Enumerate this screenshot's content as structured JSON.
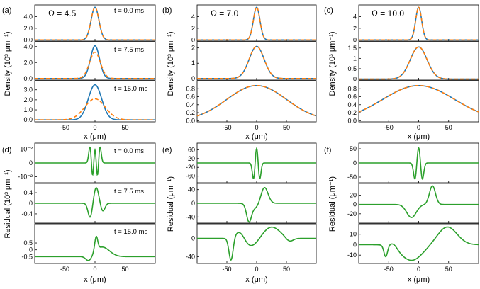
{
  "chart_data": {
    "type": "line",
    "panel_labels": [
      "(a)",
      "(b)",
      "(c)",
      "(d)",
      "(e)",
      "(f)"
    ],
    "omega_labels": [
      "Ω = 4.5",
      "Ω = 7.0",
      "Ω = 10.0"
    ],
    "time_labels": [
      "t = 0.0 ms",
      "t = 7.5 ms",
      "t = 15.0 ms"
    ],
    "xlabel": "x (μm)",
    "xlim": [
      -100,
      100
    ],
    "xticks": [
      -50,
      0,
      50
    ],
    "xtick_labels": [
      "-50",
      "0",
      "50"
    ],
    "ylabels": {
      "density_a": "Density (10³ μm⁻¹)",
      "density_bc": "Density (10³ μm⁻¹)",
      "residual_d": "Residual (10³ μm⁻¹)",
      "residual_ef": "Residual (μm⁻¹)"
    },
    "colors": {
      "solid": "#1f77b4",
      "dashed": "#ff7f0e",
      "residual": "#2ca02c"
    },
    "density": [
      {
        "omega": 4.5,
        "subplots": [
          {
            "ylim": [
              -0.2,
              6.0
            ],
            "yticks": [
              0,
              2,
              4
            ],
            "ytick_labels": [
              "0.0",
              "2.0",
              "4.0"
            ],
            "solid_peak": 5.6,
            "solid_width": 6.5,
            "dashed_peak": 5.6,
            "dashed_width": 6.5
          },
          {
            "ylim": [
              -0.2,
              4.6
            ],
            "yticks": [
              0,
              2,
              4
            ],
            "ytick_labels": [
              "0.0",
              "2.0",
              "4.0"
            ],
            "solid_peak": 4.1,
            "solid_width": 7.5,
            "dashed_peak": 3.3,
            "dashed_width": 9.0
          },
          {
            "ylim": [
              -0.2,
              3.9
            ],
            "yticks": [
              0,
              1,
              2,
              3
            ],
            "ytick_labels": [
              "0.0",
              "1.0",
              "2.0",
              "3.0"
            ],
            "solid_peak": 3.5,
            "solid_width": 11.0,
            "dashed_peak": 2.1,
            "dashed_width": 17.0
          }
        ]
      },
      {
        "omega": 7.0,
        "subplots": [
          {
            "ylim": [
              -0.2,
              6.0
            ],
            "yticks": [
              0,
              2,
              4
            ],
            "ytick_labels": [
              "0",
              "2",
              "4"
            ],
            "solid_peak": 5.6,
            "solid_width": 5.5,
            "dashed_peak": 5.6,
            "dashed_width": 5.5
          },
          {
            "ylim": [
              -0.1,
              2.4
            ],
            "yticks": [
              0,
              1,
              2
            ],
            "ytick_labels": [
              "0",
              "1",
              "2"
            ],
            "solid_peak": 2.1,
            "solid_width": 12.5,
            "dashed_peak": 2.1,
            "dashed_width": 12.5
          },
          {
            "ylim": [
              -0.03,
              1.0
            ],
            "yticks": [
              0,
              0.2,
              0.4,
              0.6,
              0.8
            ],
            "ytick_labels": [
              "0.0",
              "0.2",
              "0.4",
              "0.6",
              "0.8"
            ],
            "solid_peak": 0.88,
            "solid_width": 50,
            "dashed_peak": 0.88,
            "dashed_width": 50
          }
        ]
      },
      {
        "omega": 10.0,
        "subplots": [
          {
            "ylim": [
              -0.2,
              6.0
            ],
            "yticks": [
              0,
              2,
              4
            ],
            "ytick_labels": [
              "0",
              "2",
              "4"
            ],
            "solid_peak": 5.6,
            "solid_width": 5.0,
            "dashed_peak": 5.6,
            "dashed_width": 5.0
          },
          {
            "ylim": [
              -0.05,
              1.8
            ],
            "yticks": [
              0,
              0.5,
              1,
              1.5
            ],
            "ytick_labels": [
              "0",
              "0.5",
              "1",
              "1.5"
            ],
            "solid_peak": 1.55,
            "solid_width": 14.0,
            "dashed_peak": 1.55,
            "dashed_width": 14.0
          },
          {
            "ylim": [
              -0.03,
              1.0
            ],
            "yticks": [
              0,
              0.2,
              0.4,
              0.6,
              0.8
            ],
            "ytick_labels": [
              "0.0",
              "0.2",
              "0.4",
              "0.6",
              "0.8"
            ],
            "solid_peak": 0.88,
            "solid_width": 60,
            "dashed_peak": 0.88,
            "dashed_width": 60
          }
        ]
      }
    ],
    "residual": [
      {
        "subplots": [
          {
            "ylim": [
              -1.0,
              1.0
            ],
            "yticks": [
              -0.7,
              0,
              0.7
            ],
            "ytick_labels": [
              "-10⁻²",
              "0",
              "10⁻²"
            ],
            "baseline": 0,
            "components": [
              {
                "amp": 0.9,
                "center": -8,
                "width": 2.2
              },
              {
                "amp": -0.95,
                "center": -4,
                "width": 2.0
              },
              {
                "amp": 0.9,
                "center": 0,
                "width": 2.2
              },
              {
                "amp": -0.95,
                "center": 4,
                "width": 2.0
              },
              {
                "amp": 0.9,
                "center": 8,
                "width": 2.2
              }
            ]
          },
          {
            "ylim": [
              -0.75,
              0.75
            ],
            "yticks": [
              -0.4,
              0,
              0.4
            ],
            "ytick_labels": [
              "-0.4",
              "0",
              "0.4"
            ],
            "baseline": 0,
            "components": [
              {
                "amp": -0.55,
                "center": -8,
                "width": 3.5
              },
              {
                "amp": 0.6,
                "center": 2,
                "width": 4.0
              },
              {
                "amp": -0.3,
                "center": 13,
                "width": 3.5
              }
            ]
          },
          {
            "ylim": [
              -1.0,
              1.9
            ],
            "yticks": [
              -0.5,
              0,
              0.5
            ],
            "ytick_labels": [
              "-0.5",
              "0",
              "0.5"
            ],
            "baseline": -0.5,
            "components": [
              {
                "amp": 1.0,
                "center": 2,
                "width": 2.5
              },
              {
                "amp": 0.7,
                "center": 12,
                "width": 12.0
              },
              {
                "amp": -0.4,
                "center": -10,
                "width": 5.0
              }
            ]
          }
        ]
      },
      {
        "subplots": [
          {
            "ylim": [
              -90,
              90
            ],
            "yticks": [
              -60,
              -20,
              20,
              60
            ],
            "ytick_labels": [
              "-60",
              "-20",
              "20",
              "60"
            ],
            "baseline": 0,
            "components": [
              {
                "amp": -78,
                "center": -5,
                "width": 2.2
              },
              {
                "amp": 78,
                "center": 0,
                "width": 2.3
              },
              {
                "amp": -78,
                "center": 5,
                "width": 2.2
              }
            ]
          },
          {
            "ylim": [
              -58,
              58
            ],
            "yticks": [
              -40,
              0,
              40
            ],
            "ytick_labels": [
              "-40",
              "0",
              "40"
            ],
            "baseline": 0,
            "components": [
              {
                "amp": -48,
                "center": -13,
                "width": 4.0
              },
              {
                "amp": 48,
                "center": 13,
                "width": 6.0
              },
              {
                "amp": -15,
                "center": -3,
                "width": 8.0
              }
            ]
          },
          {
            "ylim": [
              -55,
              32
            ],
            "yticks": [
              -40,
              0
            ],
            "ytick_labels": [
              "-40",
              "0"
            ],
            "baseline": 0,
            "components": [
              {
                "amp": -50,
                "center": -43,
                "width": 3.5
              },
              {
                "amp": 18,
                "center": -28,
                "width": 8.0
              },
              {
                "amp": -18,
                "center": -10,
                "width": 12.0
              },
              {
                "amp": 25,
                "center": 25,
                "width": 14.0
              },
              {
                "amp": -8,
                "center": 55,
                "width": 6.0
              }
            ]
          }
        ]
      },
      {
        "subplots": [
          {
            "ylim": [
              -70,
              70
            ],
            "yticks": [
              -50,
              0,
              50
            ],
            "ytick_labels": [
              "-50",
              "0",
              "50"
            ],
            "baseline": 0,
            "components": [
              {
                "amp": -60,
                "center": -6,
                "width": 2.5
              },
              {
                "amp": 60,
                "center": 0,
                "width": 2.6
              },
              {
                "amp": -60,
                "center": 6,
                "width": 2.5
              }
            ]
          },
          {
            "ylim": [
              -40,
              45
            ],
            "yticks": [
              -20,
              0,
              20
            ],
            "ytick_labels": [
              "-20",
              "0",
              "20"
            ],
            "baseline": 0,
            "components": [
              {
                "amp": -28,
                "center": -12,
                "width": 8.0
              },
              {
                "amp": 40,
                "center": 23,
                "width": 5.0
              }
            ]
          },
          {
            "ylim": [
              -18,
              20
            ],
            "yticks": [
              -10,
              0,
              10
            ],
            "ytick_labels": [
              "-10",
              "0",
              "10"
            ],
            "baseline": 0,
            "components": [
              {
                "amp": -11,
                "center": -55,
                "width": 3.0
              },
              {
                "amp": 4,
                "center": -42,
                "width": 6.0
              },
              {
                "amp": -15,
                "center": -12,
                "width": 18.0
              },
              {
                "amp": 17,
                "center": 48,
                "width": 16.0
              }
            ]
          }
        ]
      }
    ]
  }
}
